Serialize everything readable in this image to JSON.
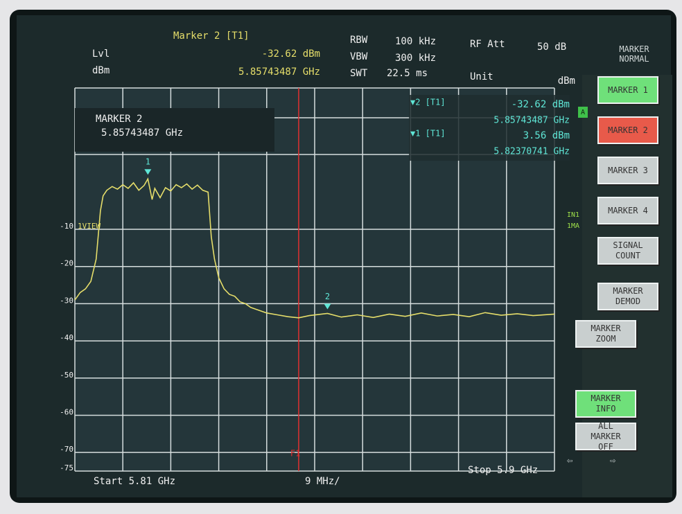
{
  "header": {
    "marker_title": "Marker 2 [T1]",
    "marker_level": "-32.62 dBm",
    "marker_freq": "5.85743487 GHz",
    "lvl": "Lvl",
    "lvl_unit": "dBm",
    "rbw_label": "RBW",
    "rbw": "100 kHz",
    "vbw_label": "VBW",
    "vbw": "300 kHz",
    "swt_label": "SWT",
    "swt": "22.5 ms",
    "rf_att_label": "RF Att",
    "rf_att": "50 dB",
    "unit_label": "Unit",
    "unit": "dBm"
  },
  "marker_box": {
    "title": "MARKER 2",
    "freq": "5.85743487 GHz"
  },
  "marker_table": [
    {
      "label": "▼2 [T1]",
      "level": "-32.62 dBm",
      "freq": "5.85743487 GHz"
    },
    {
      "label": "▼1 [T1]",
      "level": "3.56 dBm",
      "freq": "5.82370741 GHz"
    }
  ],
  "side_labels": {
    "view": "1VIEW",
    "in1": "IN1",
    "ma": "1MA",
    "a": "A"
  },
  "trace": {
    "color": "#e6de6a",
    "xlim": [
      5.81,
      5.9
    ],
    "ylim": [
      -75,
      28
    ],
    "yticks": [
      -10,
      -20,
      -30,
      -40,
      -50,
      -60,
      -70,
      -75
    ],
    "f1": 5.852,
    "x": [
      5.81,
      5.811,
      5.812,
      5.813,
      5.814,
      5.8148,
      5.8153,
      5.816,
      5.817,
      5.818,
      5.819,
      5.82,
      5.821,
      5.822,
      5.823,
      5.8237,
      5.8245,
      5.825,
      5.826,
      5.827,
      5.828,
      5.829,
      5.83,
      5.831,
      5.832,
      5.833,
      5.834,
      5.835,
      5.8356,
      5.8362,
      5.837,
      5.838,
      5.839,
      5.84,
      5.841,
      5.842,
      5.843,
      5.844,
      5.846,
      5.848,
      5.85,
      5.852,
      5.854,
      5.8574,
      5.86,
      5.863,
      5.866,
      5.869,
      5.872,
      5.875,
      5.878,
      5.881,
      5.884,
      5.887,
      5.89,
      5.893,
      5.896,
      5.9
    ],
    "values": [
      -29,
      -27,
      -26,
      -24,
      -18,
      -5,
      -1,
      0.5,
      1.5,
      0.8,
      2,
      1,
      2.5,
      0.5,
      1.8,
      3.56,
      -2,
      1,
      -1.5,
      1.2,
      0.3,
      2,
      1.2,
      2.2,
      0.8,
      1.9,
      0.5,
      0,
      -12,
      -18,
      -23,
      -26,
      -27.5,
      -28,
      -29.5,
      -30,
      -31,
      -31.5,
      -32.5,
      -33,
      -33.5,
      -33.8,
      -33.2,
      -32.62,
      -33.6,
      -33,
      -33.7,
      -32.8,
      -33.4,
      -32.5,
      -33.3,
      -32.9,
      -33.5,
      -32.4,
      -33.1,
      -32.7,
      -33.2,
      -32.8
    ],
    "markers": [
      {
        "label": "1",
        "x": 5.8237,
        "value": 3.56
      },
      {
        "label": "2",
        "x": 5.8574,
        "value": -32.62
      }
    ]
  },
  "footer": {
    "start": "Start 5.81 GHz",
    "span": "9 MHz/",
    "stop": "Stop 5.9 GHz",
    "f1": "F1",
    "left_arrow": "⇦",
    "right_arrow": "⇨"
  },
  "menu": {
    "title": "MARKER NORMAL",
    "buttons": [
      {
        "label": "MARKER 1",
        "color": "#6fe07a"
      },
      {
        "label": "MARKER 2",
        "color": "#e85a4a"
      },
      {
        "label": "MARKER 3",
        "color": "#c9cfcf"
      },
      {
        "label": "MARKER 4",
        "color": "#c9cfcf"
      },
      {
        "label": "SIGNAL COUNT",
        "color": "#c9cfcf"
      },
      {
        "label": "MARKER DEMOD",
        "color": "#c9cfcf"
      },
      {
        "label": "MARKER ZOOM",
        "color": "#c9cfcf"
      },
      {
        "label": "MARKER INFO",
        "color": "#6fe07a"
      },
      {
        "label": "ALL MARKER OFF",
        "color": "#c9cfcf"
      }
    ]
  }
}
